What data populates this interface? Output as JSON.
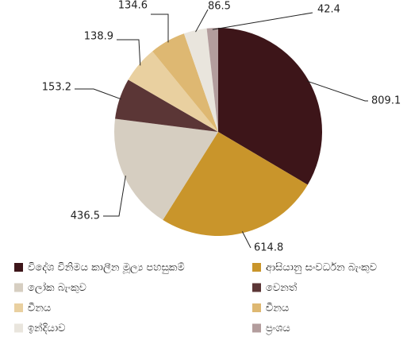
{
  "chart_data": {
    "type": "pie",
    "categories": [
      "විදේශ විනිමය කාලීන මූල්‍ය පහසුකම්",
      "ආසියානු සංවර්ධන බැංකුව",
      "ලෝක බැංකුව",
      "වෙනත්",
      "චීනය",
      "චීනය",
      "ඉන්දියාව",
      "ප්‍රංශය"
    ],
    "values": [
      809.1,
      614.8,
      436.5,
      153.2,
      138.9,
      134.6,
      86.5,
      42.4
    ],
    "colors": [
      "#3d1519",
      "#c9952b",
      "#d6cec1",
      "#5b3636",
      "#e9d0a0",
      "#deb872",
      "#e9e5dd",
      "#b39d9d"
    ],
    "legend": "bottom"
  }
}
